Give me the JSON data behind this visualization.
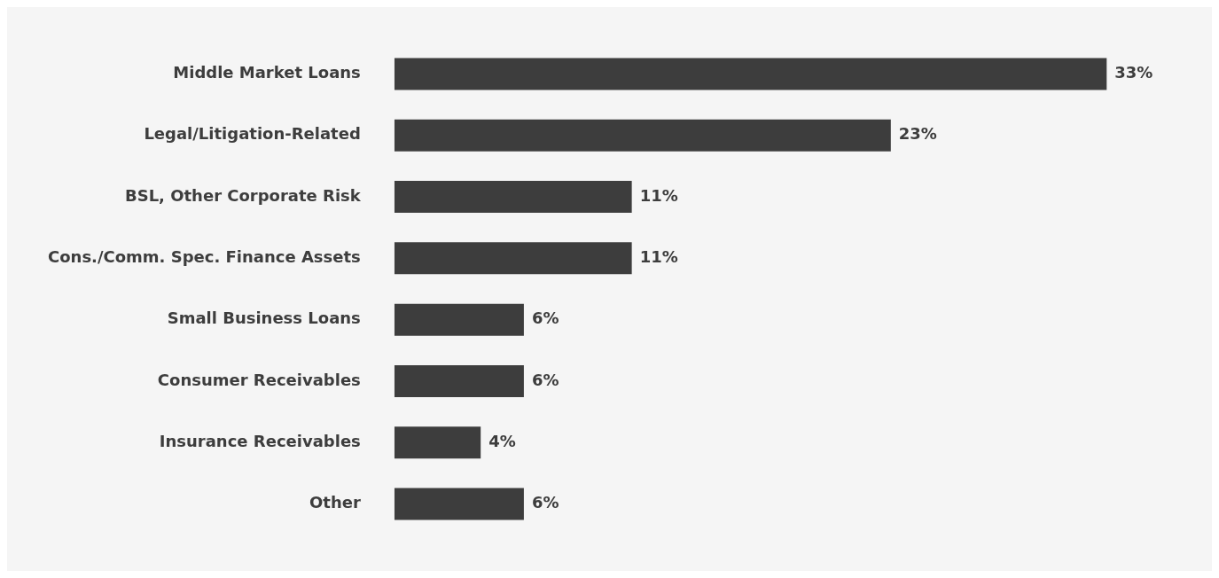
{
  "chart_data": {
    "type": "bar",
    "orientation": "horizontal",
    "categories": [
      "Middle Market Loans",
      "Legal/Litigation-Related",
      "BSL, Other Corporate Risk",
      "Cons./Comm. Spec. Finance Assets",
      "Small Business Loans",
      "Consumer Receivables",
      "Insurance Receivables",
      "Other"
    ],
    "values": [
      33,
      23,
      11,
      11,
      6,
      6,
      4,
      6
    ],
    "value_labels": [
      "33%",
      "23%",
      "11%",
      "11%",
      "6%",
      "6%",
      "4%",
      "6%"
    ],
    "color": "#3d3d3d",
    "legend": false,
    "tick_labels": "y"
  }
}
